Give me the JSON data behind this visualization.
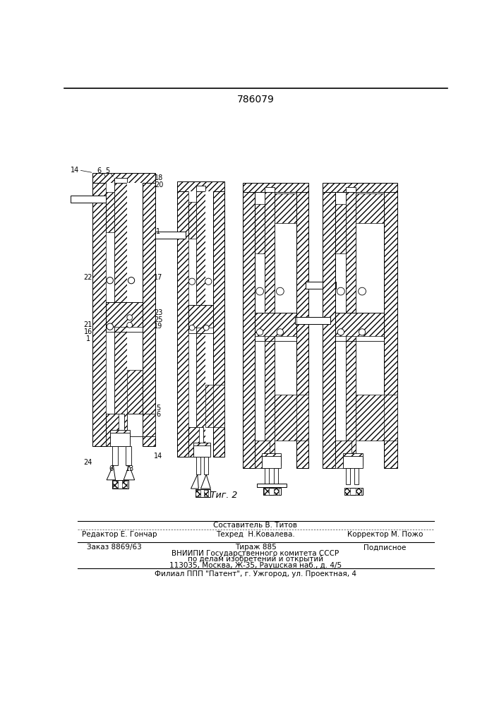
{
  "patent_number": "786079",
  "fig_label": "Τиг. 2",
  "background_color": "#ffffff",
  "line_color": "#000000",
  "footer": {
    "line1_center": "Составитель В. Титов",
    "line2_left": "Редактор Е. Гончар",
    "line2_center": "Техред  Н.Ковалева.",
    "line2_right": "Корректор М. Пожо",
    "line3_left": "Заказ 8869/63",
    "line3_center": "Тираж 885",
    "line3_right": "Подписное",
    "line4": "ВНИИПИ Государственного комитета СССР",
    "line5": "по делам изобретений и открытий",
    "line6": "113035, Москва, Ж-35, Раушская наб., д. 4/5",
    "line7": "Филиал ППП \"Патент\", г. Ужгород, ул. Проектная, 4"
  }
}
